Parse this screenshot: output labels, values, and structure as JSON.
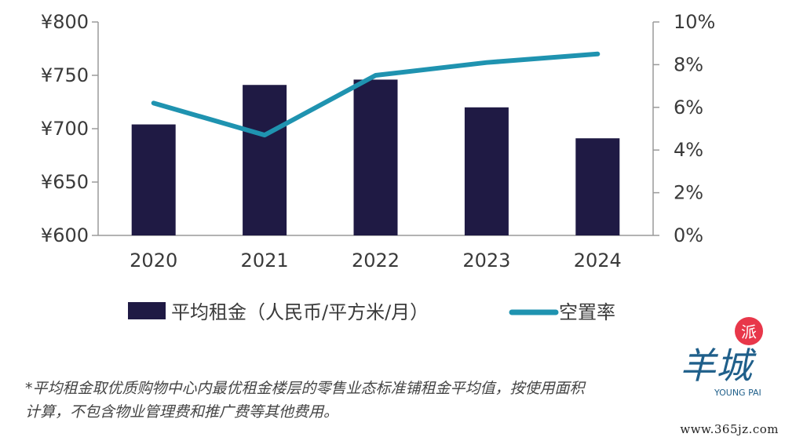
{
  "chart_data": {
    "type": "bar",
    "categories": [
      "2020",
      "2021",
      "2022",
      "2023",
      "2024"
    ],
    "series": [
      {
        "name": "平均租金（人民币/平方米/月）",
        "kind": "bar",
        "axis": "left",
        "values": [
          704,
          741,
          746,
          720,
          691
        ],
        "color": "#1f1a44"
      },
      {
        "name": "空置率",
        "kind": "line",
        "axis": "right",
        "values": [
          6.2,
          4.7,
          7.5,
          8.1,
          8.5
        ],
        "color": "#1f93b0"
      }
    ],
    "left_axis": {
      "ylim": [
        600,
        800
      ],
      "ticks": [
        600,
        650,
        700,
        750,
        800
      ],
      "tick_labels": [
        "¥600",
        "¥650",
        "¥700",
        "¥750",
        "¥800"
      ]
    },
    "right_axis": {
      "ylim": [
        0,
        10
      ],
      "ticks": [
        0,
        2,
        4,
        6,
        8,
        10
      ],
      "tick_labels": [
        "0%",
        "2%",
        "4%",
        "6%",
        "8%",
        "10%"
      ]
    },
    "grid": false,
    "legend": "bottom"
  },
  "footnote": {
    "line1": "*平均租金取优质购物中心内最优租金楼层的零售业态标准铺租金平均值，按使用面积",
    "line2": "计算，不包含物业管理费和推广费等其他费用。"
  },
  "watermark": {
    "logo_text": "羊城",
    "badge_text": "派",
    "sub_text": "YOUNG PAI",
    "url": "www.365jz.com"
  }
}
